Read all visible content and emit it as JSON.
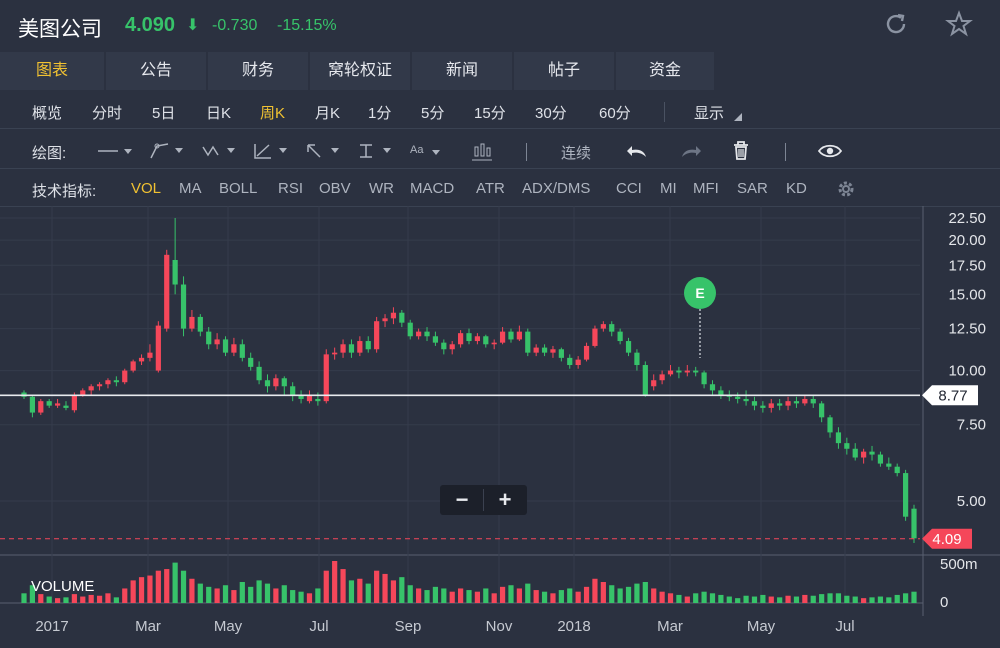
{
  "header": {
    "stock_name": "美图公司",
    "price": "4.090",
    "arrow": "⬇",
    "change": "-0.730",
    "change_pct": "-15.15%"
  },
  "tabs": [
    "图表",
    "公告",
    "财务",
    "窝轮权证",
    "新闻",
    "帖子",
    "资金"
  ],
  "periods": [
    "概览",
    "分时",
    "5日",
    "日K",
    "周K",
    "月K",
    "1分",
    "5分",
    "15分",
    "30分",
    "60分",
    "显示"
  ],
  "draw_bar": {
    "label": "绘图:",
    "continuous": "连续",
    "text_tool": "Aa"
  },
  "indicators": {
    "label": "技术指标:",
    "items": [
      "VOL",
      "MA",
      "BOLL",
      "RSI",
      "OBV",
      "WR",
      "MACD",
      "ATR",
      "ADX/DMS",
      "CCI",
      "MI",
      "MFI",
      "SAR",
      "KD"
    ]
  },
  "zoom": {
    "minus": "−",
    "plus": "+"
  },
  "colors": {
    "up": "#f5475a",
    "down": "#37c36a",
    "bg": "#2b3140",
    "accent": "#f1c232"
  },
  "chart_data": {
    "type": "candlestick",
    "price_axis_ticks": [
      "22.50",
      "20.00",
      "17.50",
      "15.00",
      "12.50",
      "10.00",
      "7.50",
      "5.00"
    ],
    "price_axis_scale": "log",
    "price_axis_values": [
      22.5,
      20,
      17.5,
      15,
      12.5,
      10,
      7.5,
      5
    ],
    "time_labels": [
      "2017",
      "Mar",
      "May",
      "Jul",
      "Sep",
      "Nov",
      "2018",
      "Mar",
      "May",
      "Jul"
    ],
    "reference_line": {
      "label": "8.77",
      "value": 8.77
    },
    "last_price": {
      "label": "4.09",
      "value": 4.09
    },
    "event_marker": "E",
    "volume_label": "VOLUME",
    "volume_axis_ticks": [
      "500m",
      "0"
    ],
    "volume_axis_values": [
      500,
      0
    ],
    "candles": [
      [
        8.9,
        8.7,
        9.0,
        8.6,
        60
      ],
      [
        8.7,
        8.0,
        8.8,
        7.8,
        110
      ],
      [
        8.0,
        8.5,
        8.6,
        7.9,
        55
      ],
      [
        8.5,
        8.3,
        8.6,
        8.2,
        40
      ],
      [
        8.3,
        8.4,
        8.6,
        8.2,
        30
      ],
      [
        8.3,
        8.2,
        8.5,
        8.1,
        35
      ],
      [
        8.1,
        8.8,
        8.9,
        8.0,
        55
      ],
      [
        8.8,
        9.0,
        9.1,
        8.7,
        40
      ],
      [
        9.0,
        9.2,
        9.3,
        8.8,
        50
      ],
      [
        9.2,
        9.3,
        9.4,
        9.0,
        45
      ],
      [
        9.3,
        9.5,
        9.6,
        9.1,
        60
      ],
      [
        9.5,
        9.4,
        9.7,
        9.2,
        35
      ],
      [
        9.4,
        10.0,
        10.1,
        9.3,
        90
      ],
      [
        10.0,
        10.5,
        10.6,
        9.9,
        140
      ],
      [
        10.5,
        10.7,
        10.9,
        10.3,
        160
      ],
      [
        10.7,
        11.0,
        11.5,
        10.5,
        170
      ],
      [
        10.0,
        12.7,
        13.0,
        9.9,
        200
      ],
      [
        12.5,
        18.5,
        19.0,
        12.3,
        210
      ],
      [
        18.0,
        15.8,
        22.5,
        15.0,
        250
      ],
      [
        15.8,
        12.5,
        16.5,
        12.0,
        200
      ],
      [
        12.5,
        13.3,
        13.8,
        12.3,
        150
      ],
      [
        13.3,
        12.3,
        13.5,
        12.0,
        120
      ],
      [
        12.3,
        11.5,
        12.6,
        11.2,
        100
      ],
      [
        11.5,
        11.8,
        12.2,
        11.2,
        90
      ],
      [
        11.8,
        11.0,
        12.0,
        10.8,
        110
      ],
      [
        11.0,
        11.5,
        11.9,
        10.8,
        80
      ],
      [
        11.5,
        10.7,
        11.8,
        10.5,
        130
      ],
      [
        10.7,
        10.2,
        11.0,
        10.0,
        100
      ],
      [
        10.2,
        9.5,
        10.5,
        9.3,
        140
      ],
      [
        9.5,
        9.2,
        9.8,
        8.9,
        120
      ],
      [
        9.2,
        9.6,
        9.8,
        9.0,
        90
      ],
      [
        9.6,
        9.2,
        9.7,
        8.8,
        110
      ],
      [
        9.2,
        8.8,
        9.4,
        8.5,
        80
      ],
      [
        8.8,
        8.6,
        9.0,
        8.4,
        70
      ],
      [
        8.5,
        8.8,
        9.0,
        8.4,
        60
      ],
      [
        8.6,
        8.5,
        8.9,
        8.3,
        90
      ],
      [
        8.5,
        10.9,
        11.2,
        8.4,
        200
      ],
      [
        10.9,
        11.0,
        11.3,
        10.6,
        260
      ],
      [
        11.0,
        11.5,
        11.8,
        10.7,
        210
      ],
      [
        11.5,
        11.0,
        11.8,
        10.7,
        140
      ],
      [
        11.0,
        11.7,
        12.0,
        10.8,
        150
      ],
      [
        11.7,
        11.2,
        12.0,
        11.0,
        120
      ],
      [
        11.2,
        13.0,
        13.3,
        11.0,
        200
      ],
      [
        13.0,
        13.2,
        13.5,
        12.6,
        180
      ],
      [
        13.2,
        13.6,
        14.0,
        12.8,
        140
      ],
      [
        13.6,
        12.9,
        13.8,
        12.6,
        160
      ],
      [
        12.9,
        12.0,
        13.1,
        11.8,
        110
      ],
      [
        12.0,
        12.3,
        12.5,
        11.8,
        90
      ],
      [
        12.3,
        12.0,
        12.6,
        11.7,
        80
      ],
      [
        12.0,
        11.6,
        12.3,
        11.4,
        100
      ],
      [
        11.6,
        11.2,
        11.8,
        10.9,
        90
      ],
      [
        11.2,
        11.5,
        11.7,
        10.9,
        70
      ],
      [
        11.5,
        12.2,
        12.4,
        11.3,
        90
      ],
      [
        12.2,
        11.7,
        12.5,
        11.5,
        80
      ],
      [
        11.7,
        12.0,
        12.2,
        11.5,
        70
      ],
      [
        12.0,
        11.5,
        12.1,
        11.3,
        90
      ],
      [
        11.5,
        11.6,
        11.8,
        11.2,
        60
      ],
      [
        11.6,
        12.3,
        12.6,
        11.5,
        100
      ],
      [
        12.3,
        11.8,
        12.5,
        11.6,
        110
      ],
      [
        11.8,
        12.3,
        12.7,
        11.7,
        90
      ],
      [
        12.3,
        11.0,
        12.5,
        10.8,
        120
      ],
      [
        11.0,
        11.3,
        11.5,
        10.8,
        80
      ],
      [
        11.3,
        11.0,
        11.5,
        10.8,
        70
      ],
      [
        11.0,
        11.2,
        11.4,
        10.7,
        60
      ],
      [
        11.2,
        10.7,
        11.3,
        10.5,
        80
      ],
      [
        10.7,
        10.3,
        10.9,
        10.1,
        90
      ],
      [
        10.3,
        10.6,
        10.8,
        10.1,
        70
      ],
      [
        10.6,
        11.4,
        11.6,
        10.5,
        100
      ],
      [
        11.4,
        12.5,
        12.7,
        11.3,
        150
      ],
      [
        12.5,
        12.8,
        13.0,
        12.3,
        130
      ],
      [
        12.8,
        12.3,
        13.0,
        12.0,
        110
      ],
      [
        12.3,
        11.7,
        12.5,
        11.5,
        90
      ],
      [
        11.7,
        11.0,
        11.9,
        10.8,
        100
      ],
      [
        11.0,
        10.3,
        11.2,
        10.0,
        120
      ],
      [
        10.3,
        8.8,
        10.5,
        8.7,
        130
      ],
      [
        9.2,
        9.5,
        9.8,
        9.0,
        90
      ],
      [
        9.5,
        9.8,
        10.0,
        9.3,
        70
      ],
      [
        9.8,
        10.0,
        10.3,
        9.7,
        60
      ],
      [
        10.0,
        9.9,
        10.2,
        9.6,
        50
      ],
      [
        9.9,
        10.0,
        10.3,
        9.7,
        40
      ],
      [
        10.0,
        9.9,
        10.2,
        9.7,
        60
      ],
      [
        9.9,
        9.3,
        10.0,
        9.1,
        70
      ],
      [
        9.3,
        9.0,
        9.5,
        8.8,
        60
      ],
      [
        9.0,
        8.8,
        9.2,
        8.6,
        50
      ],
      [
        8.8,
        8.7,
        9.0,
        8.5,
        40
      ],
      [
        8.7,
        8.6,
        8.9,
        8.4,
        30
      ],
      [
        8.6,
        8.5,
        9.0,
        8.3,
        45
      ],
      [
        8.5,
        8.3,
        8.7,
        8.1,
        40
      ],
      [
        8.3,
        8.2,
        8.5,
        8.0,
        50
      ],
      [
        8.2,
        8.4,
        8.6,
        8.0,
        40
      ],
      [
        8.4,
        8.3,
        8.6,
        8.1,
        35
      ],
      [
        8.3,
        8.5,
        8.7,
        8.1,
        45
      ],
      [
        8.5,
        8.4,
        8.7,
        8.2,
        40
      ],
      [
        8.4,
        8.6,
        8.8,
        8.3,
        50
      ],
      [
        8.6,
        8.4,
        8.8,
        8.2,
        45
      ],
      [
        8.4,
        7.8,
        8.5,
        7.6,
        55
      ],
      [
        7.8,
        7.2,
        7.9,
        7.0,
        60
      ],
      [
        7.2,
        6.8,
        7.4,
        6.6,
        60
      ],
      [
        6.8,
        6.6,
        7.0,
        6.4,
        45
      ],
      [
        6.6,
        6.3,
        6.8,
        6.2,
        40
      ],
      [
        6.3,
        6.5,
        6.6,
        6.1,
        30
      ],
      [
        6.5,
        6.4,
        6.7,
        6.2,
        35
      ],
      [
        6.4,
        6.1,
        6.5,
        6.0,
        40
      ],
      [
        6.1,
        6.0,
        6.3,
        5.9,
        35
      ],
      [
        6.0,
        5.8,
        6.1,
        5.7,
        50
      ],
      [
        5.8,
        4.6,
        5.9,
        4.5,
        60
      ],
      [
        4.8,
        4.1,
        4.9,
        4.0,
        70
      ]
    ]
  }
}
